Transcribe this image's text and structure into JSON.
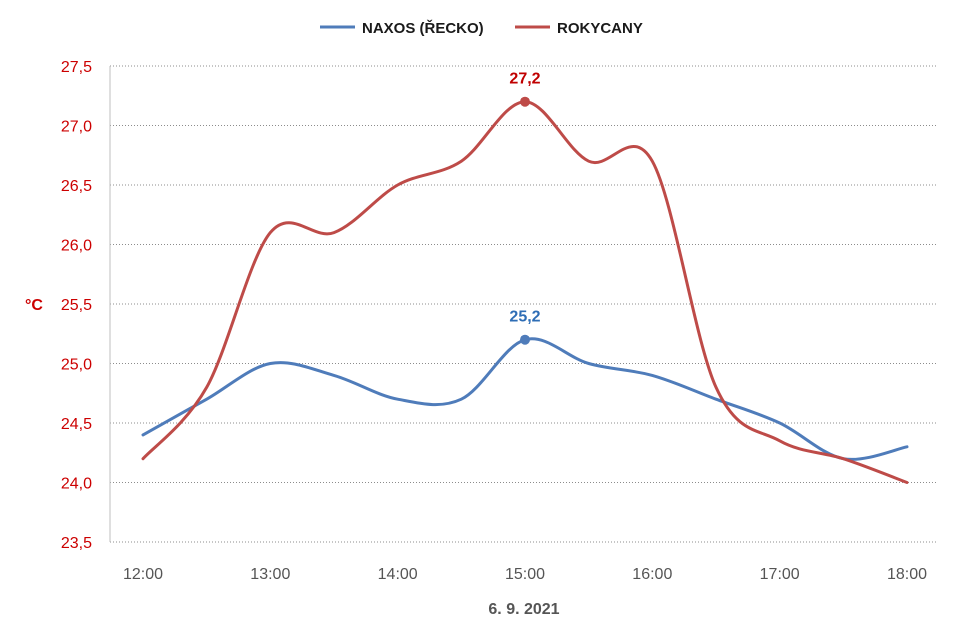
{
  "chart_data": {
    "type": "line",
    "title": "",
    "xlabel": "6. 9. 2021",
    "ylabel": "°C",
    "ylim": [
      23.5,
      27.5
    ],
    "yticks": [
      "23,5",
      "24,0",
      "24,5",
      "25,0",
      "25,5",
      "26,0",
      "26,5",
      "27,0",
      "27,5"
    ],
    "x_ticks": [
      "12:00",
      "13:00",
      "14:00",
      "15:00",
      "16:00",
      "17:00",
      "18:00"
    ],
    "x_hours": [
      12.0,
      12.5,
      13.0,
      13.5,
      14.0,
      14.5,
      15.0,
      15.5,
      16.0,
      16.5,
      17.0,
      17.5,
      18.0
    ],
    "grid": "horizontal-dotted",
    "legend_position": "top-center",
    "series": [
      {
        "name": "NAXOS (ŘECKO)",
        "color": "#4f7cba",
        "values": [
          24.4,
          24.7,
          25.0,
          24.9,
          24.7,
          24.7,
          25.2,
          25.0,
          24.9,
          24.7,
          24.5,
          24.2,
          24.3
        ],
        "peak_label": "25,2",
        "peak_index": 6,
        "label_color": "#2e6db5"
      },
      {
        "name": "ROKYCANY",
        "color": "#be4b48",
        "values": [
          24.2,
          24.8,
          26.1,
          26.1,
          26.5,
          26.7,
          27.2,
          26.7,
          26.7,
          24.8,
          24.35,
          24.2,
          24.0
        ],
        "peak_label": "27,2",
        "peak_index": 6,
        "label_color": "#c00000"
      }
    ]
  }
}
